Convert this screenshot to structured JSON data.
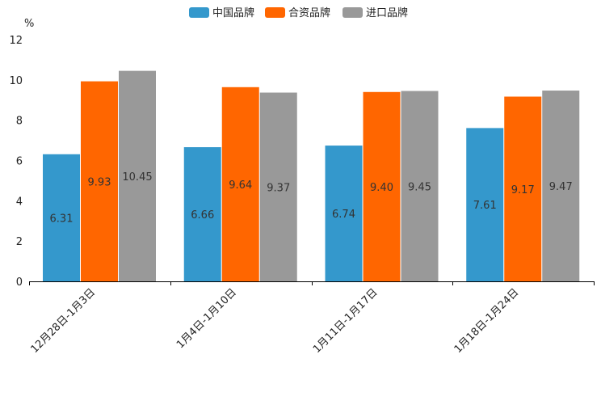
{
  "chart_data": {
    "type": "bar",
    "title": "",
    "ylabel": "%",
    "xlabel": "",
    "ylim": [
      0,
      12
    ],
    "yticks": [
      0,
      2,
      4,
      6,
      8,
      10,
      12
    ],
    "categories": [
      "12月28日-1月3日",
      "1月4日-1月10日",
      "1月11日-1月17日",
      "1月18日-1月24日"
    ],
    "series": [
      {
        "name": "中国品牌",
        "color": "#3498cc",
        "values": [
          6.31,
          6.66,
          6.74,
          7.61
        ],
        "labels": [
          "6.31",
          "6.66",
          "6.74",
          "7.61"
        ]
      },
      {
        "name": "合资品牌",
        "color": "#ff6600",
        "values": [
          9.93,
          9.64,
          9.4,
          9.17
        ],
        "labels": [
          "9.93",
          "9.64",
          "9.40",
          "9.17"
        ]
      },
      {
        "name": "进口品牌",
        "color": "#999999",
        "values": [
          10.45,
          9.37,
          9.45,
          9.47
        ],
        "labels": [
          "10.45",
          "9.37",
          "9.45",
          "9.47"
        ]
      }
    ],
    "legend_position": "top-center",
    "grid": false
  }
}
